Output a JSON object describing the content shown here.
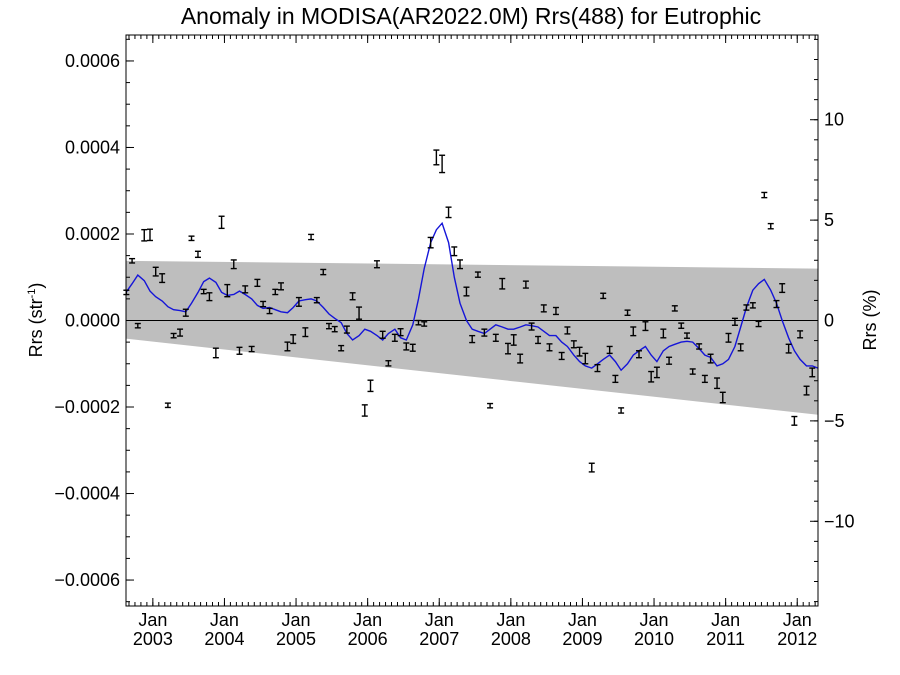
{
  "chart_data": {
    "type": "scatter",
    "title": "Anomaly in MODISA(AR2022.0M) Rrs(488) for Eutrophic",
    "ylabel": "Rrs (str",
    "ylabel_sup": "-1",
    "ylabel_close": ")",
    "y2label": "Rrs (%)",
    "xlabel": "",
    "xlim": [
      2002.625,
      2012.29
    ],
    "ylim": [
      -0.00066,
      0.00066
    ],
    "y2lim": [
      -14.22,
      14.22
    ],
    "grid": false,
    "x_ticks": [
      {
        "month": "Jan",
        "year": "2003",
        "value": 2003.0
      },
      {
        "month": "Jan",
        "year": "2004",
        "value": 2004.0
      },
      {
        "month": "Jan",
        "year": "2005",
        "value": 2005.0
      },
      {
        "month": "Jan",
        "year": "2006",
        "value": 2006.0
      },
      {
        "month": "Jan",
        "year": "2007",
        "value": 2007.0
      },
      {
        "month": "Jan",
        "year": "2008",
        "value": 2008.0
      },
      {
        "month": "Jan",
        "year": "2009",
        "value": 2009.0
      },
      {
        "month": "Jan",
        "year": "2010",
        "value": 2010.0
      },
      {
        "month": "Jan",
        "year": "2011",
        "value": 2011.0
      },
      {
        "month": "Jan",
        "year": "2012",
        "value": 2012.0
      }
    ],
    "y_ticks": [
      {
        "value": 0.0006,
        "label": "0.0006"
      },
      {
        "value": 0.0004,
        "label": "0.0004"
      },
      {
        "value": 0.0002,
        "label": "0.0002"
      },
      {
        "value": 0.0,
        "label": "0.0000"
      },
      {
        "value": -0.0002,
        "label": "−0.0002"
      },
      {
        "value": -0.0004,
        "label": "−0.0004"
      },
      {
        "value": -0.0006,
        "label": "−0.0006"
      }
    ],
    "y2_ticks": [
      {
        "value": 10,
        "label": "10"
      },
      {
        "value": 5,
        "label": "5"
      },
      {
        "value": 0,
        "label": "0"
      },
      {
        "value": -5,
        "label": "−5"
      },
      {
        "value": -10,
        "label": "−10"
      }
    ],
    "band": {
      "start": [
        2002.625,
        0.000138,
        -4.2e-05
      ],
      "end": [
        2012.29,
        0.00012,
        -0.000218
      ]
    },
    "error_bars": [
      {
        "x": 2002.63,
        "y": 6.5e-05,
        "err": 5e-06
      },
      {
        "x": 2002.71,
        "y": 0.000138,
        "err": 5e-06
      },
      {
        "x": 2002.79,
        "y": -1.2e-05,
        "err": 5e-06
      },
      {
        "x": 2002.88,
        "y": 0.000197,
        "err": 1.3e-05
      },
      {
        "x": 2002.96,
        "y": 0.000198,
        "err": 1.3e-05
      },
      {
        "x": 2003.04,
        "y": 0.000113,
        "err": 1e-05
      },
      {
        "x": 2003.13,
        "y": 9.8e-05,
        "err": 1e-05
      },
      {
        "x": 2003.21,
        "y": -0.000196,
        "err": 5e-06
      },
      {
        "x": 2003.29,
        "y": -3.5e-05,
        "err": 5e-06
      },
      {
        "x": 2003.38,
        "y": -2.8e-05,
        "err": 8e-06
      },
      {
        "x": 2003.46,
        "y": 1.8e-05,
        "err": 8e-06
      },
      {
        "x": 2003.54,
        "y": 0.00019,
        "err": 5e-06
      },
      {
        "x": 2003.63,
        "y": 0.000153,
        "err": 7e-06
      },
      {
        "x": 2003.71,
        "y": 6.7e-05,
        "err": 5e-06
      },
      {
        "x": 2003.79,
        "y": 5.5e-05,
        "err": 9e-06
      },
      {
        "x": 2003.88,
        "y": -7.5e-05,
        "err": 1.1e-05
      },
      {
        "x": 2003.96,
        "y": 0.000227,
        "err": 1.4e-05
      },
      {
        "x": 2004.04,
        "y": 6.9e-05,
        "err": 1.4e-05
      },
      {
        "x": 2004.13,
        "y": 0.00013,
        "err": 1e-05
      },
      {
        "x": 2004.21,
        "y": -7e-05,
        "err": 8e-06
      },
      {
        "x": 2004.29,
        "y": 7.2e-05,
        "err": 8e-06
      },
      {
        "x": 2004.38,
        "y": -6.6e-05,
        "err": 6e-06
      },
      {
        "x": 2004.46,
        "y": 8.7e-05,
        "err": 8e-06
      },
      {
        "x": 2004.54,
        "y": 3.8e-05,
        "err": 6e-06
      },
      {
        "x": 2004.63,
        "y": 2.2e-05,
        "err": 6e-06
      },
      {
        "x": 2004.71,
        "y": 6.6e-05,
        "err": 6e-06
      },
      {
        "x": 2004.79,
        "y": 7.9e-05,
        "err": 8e-06
      },
      {
        "x": 2004.88,
        "y": -6e-05,
        "err": 1e-05
      },
      {
        "x": 2004.96,
        "y": -4.3e-05,
        "err": 1e-05
      },
      {
        "x": 2005.04,
        "y": 4.3e-05,
        "err": 1e-05
      },
      {
        "x": 2005.13,
        "y": -2.7e-05,
        "err": 1e-05
      },
      {
        "x": 2005.21,
        "y": 0.000193,
        "err": 6e-06
      },
      {
        "x": 2005.29,
        "y": 4.7e-05,
        "err": 6e-06
      },
      {
        "x": 2005.38,
        "y": 0.000112,
        "err": 6e-06
      },
      {
        "x": 2005.46,
        "y": -1.3e-05,
        "err": 6e-06
      },
      {
        "x": 2005.54,
        "y": -2e-05,
        "err": 6e-06
      },
      {
        "x": 2005.63,
        "y": -6.4e-05,
        "err": 6e-06
      },
      {
        "x": 2005.71,
        "y": -2.1e-05,
        "err": 8e-06
      },
      {
        "x": 2005.79,
        "y": 5.6e-05,
        "err": 8e-06
      },
      {
        "x": 2005.88,
        "y": 1.7e-05,
        "err": 1.4e-05
      },
      {
        "x": 2005.96,
        "y": -0.000208,
        "err": 1.3e-05
      },
      {
        "x": 2006.04,
        "y": -0.000151,
        "err": 1.3e-05
      },
      {
        "x": 2006.13,
        "y": 0.00013,
        "err": 8e-06
      },
      {
        "x": 2006.21,
        "y": -3.3e-05,
        "err": 8e-06
      },
      {
        "x": 2006.29,
        "y": -9.9e-05,
        "err": 6e-06
      },
      {
        "x": 2006.38,
        "y": -4e-05,
        "err": 8e-06
      },
      {
        "x": 2006.46,
        "y": -2.7e-05,
        "err": 8e-06
      },
      {
        "x": 2006.54,
        "y": -6e-05,
        "err": 8e-06
      },
      {
        "x": 2006.63,
        "y": -6.3e-05,
        "err": 8e-06
      },
      {
        "x": 2006.71,
        "y": -5e-06,
        "err": 5e-06
      },
      {
        "x": 2006.79,
        "y": -8e-06,
        "err": 5e-06
      },
      {
        "x": 2006.88,
        "y": 0.00018,
        "err": 1.2e-05
      },
      {
        "x": 2006.96,
        "y": 0.000377,
        "err": 1.7e-05
      },
      {
        "x": 2007.04,
        "y": 0.000362,
        "err": 2e-05
      },
      {
        "x": 2007.13,
        "y": 0.00025,
        "err": 1.2e-05
      },
      {
        "x": 2007.21,
        "y": 0.00016,
        "err": 1e-05
      },
      {
        "x": 2007.29,
        "y": 0.00013,
        "err": 1e-05
      },
      {
        "x": 2007.38,
        "y": 6.7e-05,
        "err": 1e-05
      },
      {
        "x": 2007.46,
        "y": -4.3e-05,
        "err": 8e-06
      },
      {
        "x": 2007.54,
        "y": 0.000106,
        "err": 6e-06
      },
      {
        "x": 2007.63,
        "y": -2.8e-05,
        "err": 8e-06
      },
      {
        "x": 2007.71,
        "y": -0.000197,
        "err": 5e-06
      },
      {
        "x": 2007.79,
        "y": -4e-05,
        "err": 8e-06
      },
      {
        "x": 2007.88,
        "y": 8.5e-05,
        "err": 1.2e-05
      },
      {
        "x": 2007.96,
        "y": -6.5e-05,
        "err": 1.2e-05
      },
      {
        "x": 2008.04,
        "y": -4.5e-05,
        "err": 1.2e-05
      },
      {
        "x": 2008.13,
        "y": -8.8e-05,
        "err": 1e-05
      },
      {
        "x": 2008.21,
        "y": 8.3e-05,
        "err": 8e-06
      },
      {
        "x": 2008.29,
        "y": -1.4e-05,
        "err": 8e-06
      },
      {
        "x": 2008.38,
        "y": -4.5e-05,
        "err": 8e-06
      },
      {
        "x": 2008.46,
        "y": 2.8e-05,
        "err": 8e-06
      },
      {
        "x": 2008.54,
        "y": -6.2e-05,
        "err": 8e-06
      },
      {
        "x": 2008.63,
        "y": 2.2e-05,
        "err": 8e-06
      },
      {
        "x": 2008.71,
        "y": -8.2e-05,
        "err": 8e-06
      },
      {
        "x": 2008.79,
        "y": -2.3e-05,
        "err": 8e-06
      },
      {
        "x": 2008.88,
        "y": -5.5e-05,
        "err": 8e-06
      },
      {
        "x": 2008.96,
        "y": -7.2e-05,
        "err": 1e-05
      },
      {
        "x": 2009.04,
        "y": -8.8e-05,
        "err": 1.2e-05
      },
      {
        "x": 2009.13,
        "y": -0.00034,
        "err": 1e-05
      },
      {
        "x": 2009.21,
        "y": -0.00011,
        "err": 8e-06
      },
      {
        "x": 2009.29,
        "y": 5.7e-05,
        "err": 6e-06
      },
      {
        "x": 2009.38,
        "y": -6.8e-05,
        "err": 8e-06
      },
      {
        "x": 2009.46,
        "y": -0.000135,
        "err": 8e-06
      },
      {
        "x": 2009.54,
        "y": -0.000208,
        "err": 6e-06
      },
      {
        "x": 2009.63,
        "y": 1.8e-05,
        "err": 6e-06
      },
      {
        "x": 2009.71,
        "y": -2.5e-05,
        "err": 1e-05
      },
      {
        "x": 2009.79,
        "y": -7.8e-05,
        "err": 8e-06
      },
      {
        "x": 2009.88,
        "y": -1.3e-05,
        "err": 1e-05
      },
      {
        "x": 2009.96,
        "y": -0.00013,
        "err": 1.2e-05
      },
      {
        "x": 2010.04,
        "y": -0.00012,
        "err": 1.2e-05
      },
      {
        "x": 2010.13,
        "y": -3e-05,
        "err": 1e-05
      },
      {
        "x": 2010.21,
        "y": -9.3e-05,
        "err": 8e-06
      },
      {
        "x": 2010.29,
        "y": 2.8e-05,
        "err": 6e-06
      },
      {
        "x": 2010.38,
        "y": -1.2e-05,
        "err": 6e-06
      },
      {
        "x": 2010.46,
        "y": -3.5e-05,
        "err": 6e-06
      },
      {
        "x": 2010.54,
        "y": -0.000118,
        "err": 6e-06
      },
      {
        "x": 2010.63,
        "y": -6e-05,
        "err": 6e-06
      },
      {
        "x": 2010.71,
        "y": -0.000135,
        "err": 8e-06
      },
      {
        "x": 2010.79,
        "y": -8.8e-05,
        "err": 1e-05
      },
      {
        "x": 2010.88,
        "y": -0.000145,
        "err": 1.2e-05
      },
      {
        "x": 2010.96,
        "y": -0.000178,
        "err": 1.2e-05
      },
      {
        "x": 2011.04,
        "y": -4e-05,
        "err": 1e-05
      },
      {
        "x": 2011.13,
        "y": -3e-06,
        "err": 8e-06
      },
      {
        "x": 2011.21,
        "y": -6.2e-05,
        "err": 8e-06
      },
      {
        "x": 2011.29,
        "y": 3e-05,
        "err": 6e-06
      },
      {
        "x": 2011.38,
        "y": 3.5e-05,
        "err": 6e-06
      },
      {
        "x": 2011.46,
        "y": -8e-06,
        "err": 6e-06
      },
      {
        "x": 2011.54,
        "y": 0.00029,
        "err": 6e-06
      },
      {
        "x": 2011.63,
        "y": 0.000218,
        "err": 6e-06
      },
      {
        "x": 2011.71,
        "y": 3.8e-05,
        "err": 8e-06
      },
      {
        "x": 2011.79,
        "y": 7.5e-05,
        "err": 1e-05
      },
      {
        "x": 2011.88,
        "y": -6.5e-05,
        "err": 1e-05
      },
      {
        "x": 2011.96,
        "y": -0.000232,
        "err": 1e-05
      },
      {
        "x": 2012.04,
        "y": -3.2e-05,
        "err": 8e-06
      },
      {
        "x": 2012.13,
        "y": -0.000162,
        "err": 1e-05
      },
      {
        "x": 2012.21,
        "y": -0.00012,
        "err": 1e-05
      }
    ],
    "smooth": {
      "x": [
        2002.625,
        2002.71,
        2002.79,
        2002.88,
        2002.96,
        2003.04,
        2003.13,
        2003.21,
        2003.29,
        2003.38,
        2003.46,
        2003.54,
        2003.63,
        2003.71,
        2003.79,
        2003.88,
        2003.96,
        2004.04,
        2004.13,
        2004.21,
        2004.29,
        2004.38,
        2004.46,
        2004.54,
        2004.63,
        2004.71,
        2004.79,
        2004.88,
        2004.96,
        2005.04,
        2005.13,
        2005.21,
        2005.29,
        2005.38,
        2005.46,
        2005.54,
        2005.63,
        2005.71,
        2005.79,
        2005.88,
        2005.96,
        2006.04,
        2006.13,
        2006.21,
        2006.29,
        2006.38,
        2006.46,
        2006.54,
        2006.63,
        2006.71,
        2006.79,
        2006.88,
        2006.96,
        2007.04,
        2007.13,
        2007.21,
        2007.29,
        2007.38,
        2007.46,
        2007.54,
        2007.63,
        2007.71,
        2007.79,
        2007.88,
        2007.96,
        2008.04,
        2008.13,
        2008.21,
        2008.29,
        2008.38,
        2008.46,
        2008.54,
        2008.63,
        2008.71,
        2008.79,
        2008.88,
        2008.96,
        2009.04,
        2009.13,
        2009.21,
        2009.29,
        2009.38,
        2009.46,
        2009.54,
        2009.63,
        2009.71,
        2009.79,
        2009.88,
        2009.96,
        2010.04,
        2010.13,
        2010.21,
        2010.29,
        2010.38,
        2010.46,
        2010.54,
        2010.63,
        2010.71,
        2010.79,
        2010.88,
        2010.96,
        2011.04,
        2011.13,
        2011.21,
        2011.29,
        2011.38,
        2011.46,
        2011.54,
        2011.63,
        2011.71,
        2011.79,
        2011.88,
        2011.96,
        2012.04,
        2012.13,
        2012.21,
        2012.29
      ],
      "y": [
        6.5e-05,
        8.5e-05,
        0.000105,
        9.2e-05,
        6.8e-05,
        5.5e-05,
        4.5e-05,
        3.2e-05,
        2.5e-05,
        2.3e-05,
        2e-05,
        4e-05,
        6.5e-05,
        9e-05,
        9.8e-05,
        8.8e-05,
        6.5e-05,
        5.8e-05,
        6e-05,
        6.8e-05,
        6e-05,
        5e-05,
        3.5e-05,
        2.8e-05,
        3e-05,
        2.5e-05,
        2e-05,
        1.8e-05,
        3e-05,
        4.5e-05,
        4.8e-05,
        5e-05,
        4.5e-05,
        3e-05,
        1.5e-05,
        5e-06,
        -5e-06,
        -3e-05,
        -4.5e-05,
        -3.5e-05,
        -2e-05,
        -2.5e-05,
        -3.5e-05,
        -4.5e-05,
        -3e-05,
        -2e-05,
        -4e-05,
        -4.5e-05,
        -1e-05,
        5e-05,
        0.00012,
        0.00018,
        0.00021,
        0.000225,
        0.00018,
        0.0001,
        4e-05,
        0.0,
        -2e-05,
        -2.5e-05,
        -3e-05,
        -2e-05,
        -1e-05,
        -1.5e-05,
        -2e-05,
        -2e-05,
        -1.5e-05,
        -1e-05,
        -1.2e-05,
        -1.5e-05,
        -2.5e-05,
        -3.5e-05,
        -3.5e-05,
        -5e-05,
        -6e-05,
        -8e-05,
        -9.5e-05,
        -0.000105,
        -0.00011,
        -0.0001,
        -9e-05,
        -8e-05,
        -9.5e-05,
        -0.000115,
        -0.0001,
        -8e-05,
        -7e-05,
        -6e-05,
        -8e-05,
        -9.5e-05,
        -7e-05,
        -6e-05,
        -5.5e-05,
        -5e-05,
        -4.8e-05,
        -5e-05,
        -6.5e-05,
        -8e-05,
        -8.5e-05,
        -0.000105,
        -0.0001,
        -9e-05,
        -6e-05,
        -1.5e-05,
        3e-05,
        7e-05,
        8.5e-05,
        9.5e-05,
        7e-05,
        4e-05,
        0.0,
        -4e-05,
        -7e-05,
        -9e-05,
        -0.000105,
        -0.000105,
        -0.00011
      ]
    },
    "colors": {
      "band": "#bebebe",
      "line": "#1515d8",
      "markers": "#000000",
      "axes": "#000000"
    }
  }
}
